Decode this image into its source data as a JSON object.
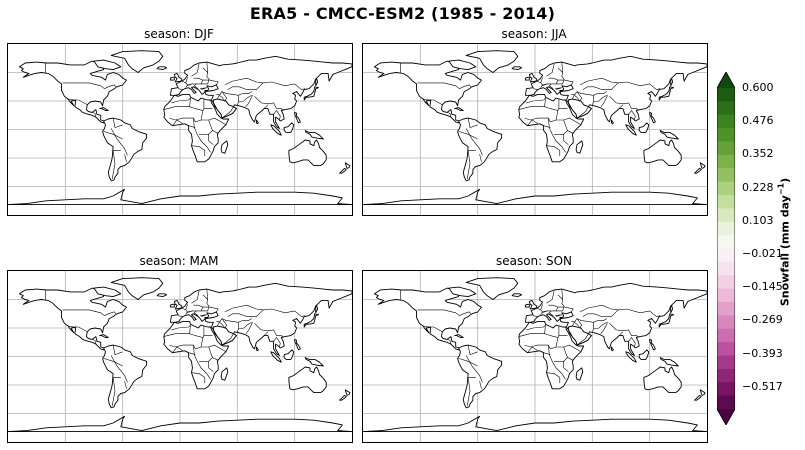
{
  "figure": {
    "title": "ERA5 - CMCC-ESM2 (1985 - 2014)"
  },
  "panels": [
    {
      "title": "season: DJF"
    },
    {
      "title": "season: JJA"
    },
    {
      "title": "season: MAM"
    },
    {
      "title": "season: SON"
    }
  ],
  "map_style": {
    "land_fill": "#ffffff",
    "coastline_color": "#000000",
    "gridline_color": "#b0b0b0",
    "gridlines": true,
    "projection": "plate-carree"
  },
  "colorbar": {
    "label_main": "Snowfall (mm day",
    "label_exp": "−1",
    "label_close": ")",
    "colormap": "PiYG",
    "range": [
      -0.6,
      0.6
    ],
    "extend": "both",
    "ticks": [
      "0.600",
      "0.476",
      "0.352",
      "0.228",
      "0.103",
      "−0.021",
      "−0.145",
      "−0.269",
      "−0.393",
      "−0.517"
    ],
    "colors": [
      "#1d5a12",
      "#2c6f17",
      "#3d8220",
      "#4f922a",
      "#64a238",
      "#7bb24a",
      "#93c162",
      "#abd07f",
      "#c3de9f",
      "#d7e9bf",
      "#e8f2dc",
      "#f5f7f0",
      "#f7f0f4",
      "#f6e2ef",
      "#f2cfe5",
      "#ecb9da",
      "#e3a0cd",
      "#d887bf",
      "#cb6daf",
      "#bb529d",
      "#a63a8a",
      "#8e2576",
      "#761561",
      "#5c0b4c"
    ]
  }
}
